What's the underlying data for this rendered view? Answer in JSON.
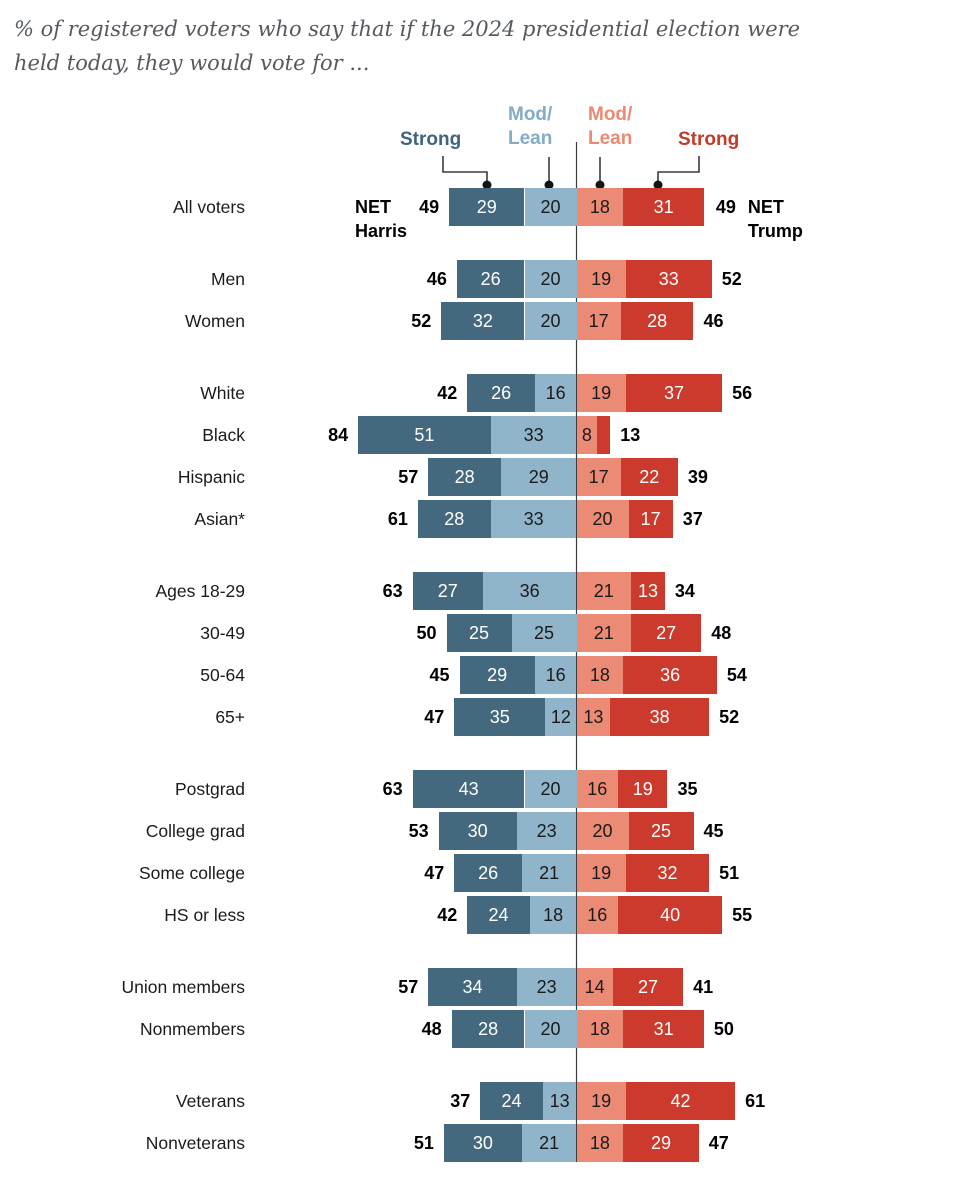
{
  "title": {
    "line1": "% of registered voters who say that if the 2024 presidential election were",
    "line2": "held today, they would vote for ..."
  },
  "legend": {
    "items": [
      {
        "name": "strong-harris",
        "line1": "Strong",
        "line2": "",
        "color": "#3d6480"
      },
      {
        "name": "lean-harris",
        "line1": "Mod/",
        "line2": "Lean",
        "color": "#84abc7"
      },
      {
        "name": "lean-trump",
        "line1": "Mod/",
        "line2": "Lean",
        "color": "#e98a74"
      },
      {
        "name": "strong-trump",
        "line1": "Strong",
        "line2": "",
        "color": "#c23b28"
      }
    ]
  },
  "net_captions": {
    "left_line1": "NET",
    "left_line2": "Harris",
    "right_line1": "NET",
    "right_line2": "Trump"
  },
  "chart_data": {
    "type": "bar",
    "variant": "diverging-stacked-horizontal",
    "series_order": [
      "strong_harris",
      "lean_harris",
      "lean_trump",
      "strong_trump"
    ],
    "legend_entries": [
      "Strong",
      "Mod/Lean",
      "Mod/Lean",
      "Strong"
    ],
    "colors": {
      "strong_harris": "#44697f",
      "lean_harris": "#90b5cb",
      "lean_trump": "#ec8b75",
      "strong_trump": "#cb3a2c",
      "value_on_dark": "#ffffff",
      "value_on_light": "#1a1a1a",
      "axis_line": "#3c3c3c"
    },
    "axis": {
      "center_value": 0,
      "unit": "percent",
      "gridlines": false
    },
    "groups": [
      {
        "rows": [
          {
            "label": "All voters",
            "net_harris": 49,
            "strong_harris": 29,
            "lean_harris": 20,
            "lean_trump": 18,
            "strong_trump": 31,
            "net_trump": 49,
            "show_net_captions": true
          }
        ]
      },
      {
        "rows": [
          {
            "label": "Men",
            "net_harris": 46,
            "strong_harris": 26,
            "lean_harris": 20,
            "lean_trump": 19,
            "strong_trump": 33,
            "net_trump": 52
          },
          {
            "label": "Women",
            "net_harris": 52,
            "strong_harris": 32,
            "lean_harris": 20,
            "lean_trump": 17,
            "strong_trump": 28,
            "net_trump": 46
          }
        ]
      },
      {
        "rows": [
          {
            "label": "White",
            "net_harris": 42,
            "strong_harris": 26,
            "lean_harris": 16,
            "lean_trump": 19,
            "strong_trump": 37,
            "net_trump": 56
          },
          {
            "label": "Black",
            "net_harris": 84,
            "strong_harris": 51,
            "lean_harris": 33,
            "lean_trump": 8,
            "strong_trump": 5,
            "net_trump": 13
          },
          {
            "label": "Hispanic",
            "net_harris": 57,
            "strong_harris": 28,
            "lean_harris": 29,
            "lean_trump": 17,
            "strong_trump": 22,
            "net_trump": 39
          },
          {
            "label": "Asian*",
            "net_harris": 61,
            "strong_harris": 28,
            "lean_harris": 33,
            "lean_trump": 20,
            "strong_trump": 17,
            "net_trump": 37
          }
        ]
      },
      {
        "rows": [
          {
            "label": "Ages 18-29",
            "net_harris": 63,
            "strong_harris": 27,
            "lean_harris": 36,
            "lean_trump": 21,
            "strong_trump": 13,
            "net_trump": 34
          },
          {
            "label": "30-49",
            "net_harris": 50,
            "strong_harris": 25,
            "lean_harris": 25,
            "lean_trump": 21,
            "strong_trump": 27,
            "net_trump": 48
          },
          {
            "label": "50-64",
            "net_harris": 45,
            "strong_harris": 29,
            "lean_harris": 16,
            "lean_trump": 18,
            "strong_trump": 36,
            "net_trump": 54
          },
          {
            "label": "65+",
            "net_harris": 47,
            "strong_harris": 35,
            "lean_harris": 12,
            "lean_trump": 13,
            "strong_trump": 38,
            "net_trump": 52
          }
        ]
      },
      {
        "rows": [
          {
            "label": "Postgrad",
            "net_harris": 63,
            "strong_harris": 43,
            "lean_harris": 20,
            "lean_trump": 16,
            "strong_trump": 19,
            "net_trump": 35
          },
          {
            "label": "College grad",
            "net_harris": 53,
            "strong_harris": 30,
            "lean_harris": 23,
            "lean_trump": 20,
            "strong_trump": 25,
            "net_trump": 45
          },
          {
            "label": "Some college",
            "net_harris": 47,
            "strong_harris": 26,
            "lean_harris": 21,
            "lean_trump": 19,
            "strong_trump": 32,
            "net_trump": 51
          },
          {
            "label": "HS or less",
            "net_harris": 42,
            "strong_harris": 24,
            "lean_harris": 18,
            "lean_trump": 16,
            "strong_trump": 40,
            "net_trump": 55
          }
        ]
      },
      {
        "rows": [
          {
            "label": "Union members",
            "net_harris": 57,
            "strong_harris": 34,
            "lean_harris": 23,
            "lean_trump": 14,
            "strong_trump": 27,
            "net_trump": 41
          },
          {
            "label": "Nonmembers",
            "net_harris": 48,
            "strong_harris": 28,
            "lean_harris": 20,
            "lean_trump": 18,
            "strong_trump": 31,
            "net_trump": 50
          }
        ]
      },
      {
        "rows": [
          {
            "label": "Veterans",
            "net_harris": 37,
            "strong_harris": 24,
            "lean_harris": 13,
            "lean_trump": 19,
            "strong_trump": 42,
            "net_trump": 61
          },
          {
            "label": "Nonveterans",
            "net_harris": 51,
            "strong_harris": 30,
            "lean_harris": 21,
            "lean_trump": 18,
            "strong_trump": 29,
            "net_trump": 47
          }
        ]
      }
    ]
  }
}
